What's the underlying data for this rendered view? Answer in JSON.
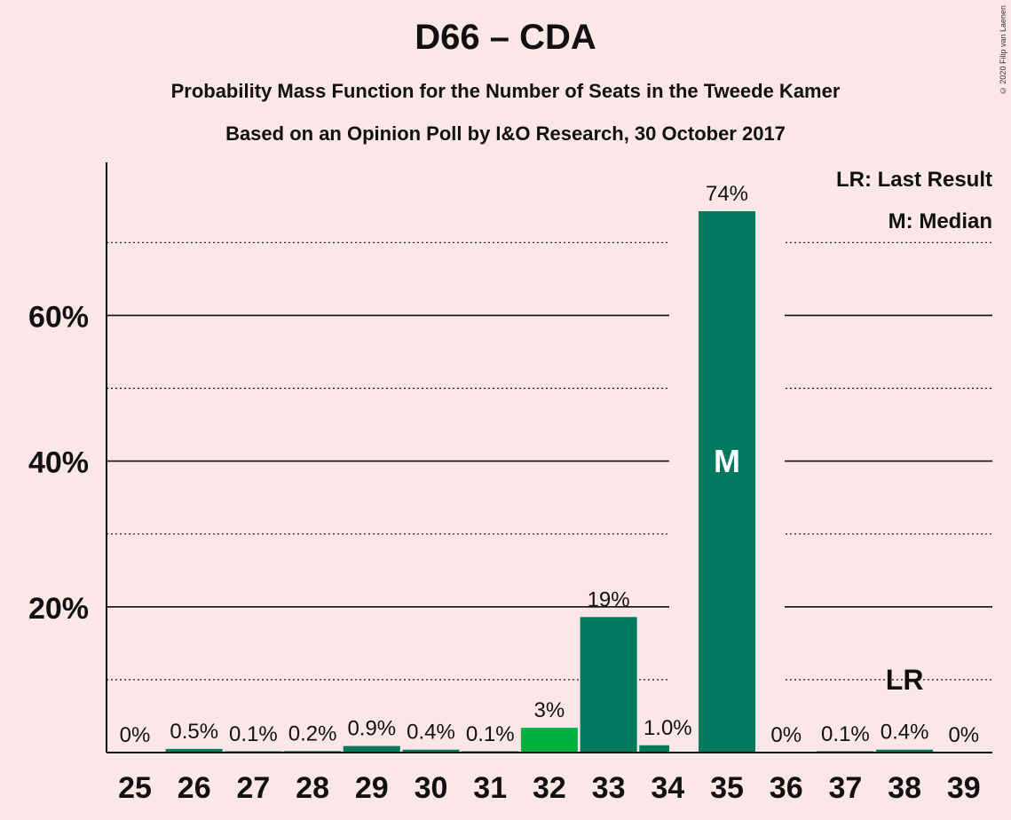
{
  "title": "D66 – CDA",
  "subtitle1": "Probability Mass Function for the Number of Seats in the Tweede Kamer",
  "subtitle2": "Based on an Opinion Poll by I&O Research, 30 October 2017",
  "copyright": "© 2020 Filip van Laenen",
  "legend": {
    "lr": "LR: Last Result",
    "m": "M: Median"
  },
  "colors": {
    "dark": "#007a5e",
    "light": "#00b140",
    "background": "#fbe7e8"
  },
  "chart_data": {
    "type": "bar",
    "categories": [
      "25",
      "26",
      "27",
      "28",
      "29",
      "30",
      "31",
      "32",
      "33",
      "34",
      "35",
      "36",
      "37",
      "38",
      "39"
    ],
    "values": [
      0,
      0.5,
      0.1,
      0.2,
      0.9,
      0.4,
      0.1,
      3.4,
      18.6,
      1.0,
      74.3,
      0,
      0.1,
      0.4,
      0
    ],
    "labels": [
      "0%",
      "0.5%",
      "0.1%",
      "0.2%",
      "0.9%",
      "0.4%",
      "0.1%",
      "3%",
      "19%",
      "1.0%",
      "74%",
      "0%",
      "0.1%",
      "0.4%",
      "0%"
    ],
    "bar_colors": [
      "dark",
      "dark",
      "dark",
      "dark",
      "dark",
      "dark",
      "dark",
      "light",
      "dark",
      "dark",
      "dark",
      "dark",
      "dark",
      "dark",
      "dark"
    ],
    "ylim": [
      0,
      81
    ],
    "yticks": [
      20,
      40,
      60
    ],
    "ytick_labels": [
      "20%",
      "40%",
      "60%"
    ],
    "minor_gridlines": [
      10,
      30,
      50,
      70
    ],
    "median": {
      "category": "35",
      "label": "M"
    },
    "last_result": {
      "category": "38",
      "label": "LR"
    },
    "xlabel": "",
    "ylabel": ""
  }
}
